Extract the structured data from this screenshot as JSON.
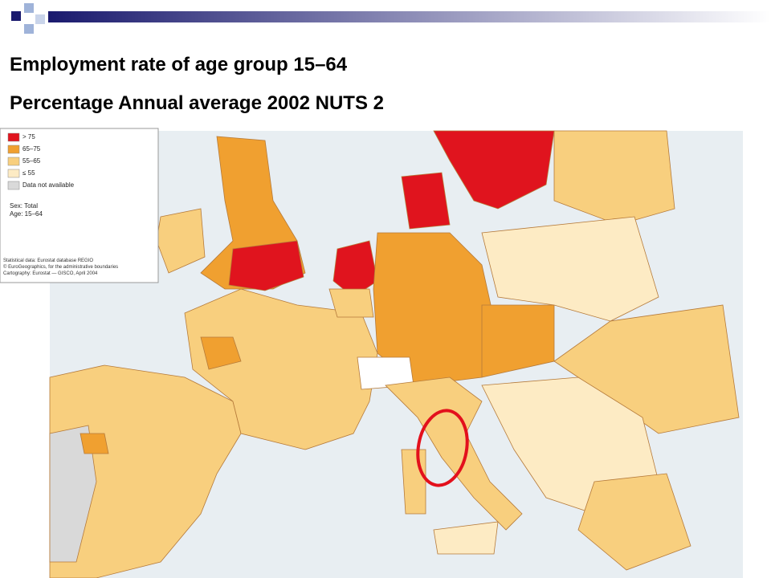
{
  "title": {
    "line1": "Employment rate of age group 15–64",
    "line2": "Percentage Annual average 2002 NUTS 2"
  },
  "legend": {
    "items": [
      {
        "label": "> 75",
        "color": "#e0141e"
      },
      {
        "label": "65–75",
        "color": "#f0a030"
      },
      {
        "label": "55–65",
        "color": "#f8cf7e"
      },
      {
        "label": "≤ 55",
        "color": "#fdebc4"
      },
      {
        "label": "Data not available",
        "color": "#d9d9d9"
      }
    ],
    "notes": [
      "Sex: Total",
      "Age: 15–64"
    ],
    "sources": [
      "Statistical data: Eurostat database REGIO",
      "© EuroGeographics, for the administrative boundaries",
      "Cartography: Eurostat — GISCO, April 2004"
    ]
  }
}
